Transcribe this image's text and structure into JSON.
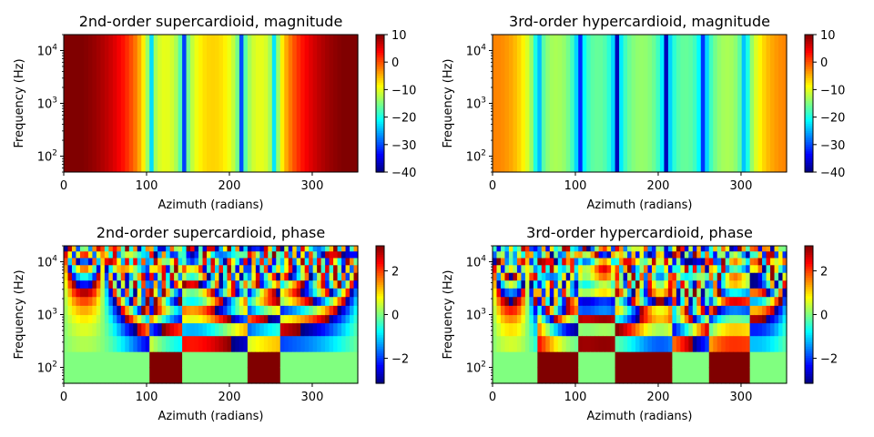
{
  "chart_data": [
    {
      "type": "heatmap",
      "title": "2nd-order supercardioid, magnitude",
      "xlabel": "Azimuth (radians)",
      "ylabel": "Frequency (Hz)",
      "xlim": [
        0,
        355
      ],
      "ylim": [
        50,
        20000
      ],
      "yscale": "log",
      "xticks": [
        0,
        100,
        200,
        300
      ],
      "yticks": [
        {
          "base": "10",
          "exp": "2",
          "value": 100
        },
        {
          "base": "10",
          "exp": "3",
          "value": 1000
        },
        {
          "base": "10",
          "exp": "4",
          "value": 10000
        }
      ],
      "colormap": "jet",
      "colorbar": {
        "min": -40,
        "max": 10,
        "ticks": [
          10,
          0,
          -10,
          -20,
          -30,
          -40
        ],
        "tick_labels": [
          "10",
          "0",
          "−10",
          "−20",
          "−30",
          "−40"
        ]
      },
      "pattern": "magnitude",
      "order": 2,
      "nulls_deg": [
        105,
        145,
        215,
        255
      ]
    },
    {
      "type": "heatmap",
      "title": "3rd-order hypercardioid, magnitude",
      "xlabel": "Azimuth (radians)",
      "ylabel": "Frequency (Hz)",
      "xlim": [
        0,
        355
      ],
      "ylim": [
        50,
        20000
      ],
      "yscale": "log",
      "xticks": [
        0,
        100,
        200,
        300
      ],
      "yticks": [
        {
          "base": "10",
          "exp": "2",
          "value": 100
        },
        {
          "base": "10",
          "exp": "3",
          "value": 1000
        },
        {
          "base": "10",
          "exp": "4",
          "value": 10000
        }
      ],
      "colormap": "jet",
      "colorbar": {
        "min": -40,
        "max": 10,
        "ticks": [
          10,
          0,
          -10,
          -20,
          -30,
          -40
        ],
        "tick_labels": [
          "10",
          "0",
          "−10",
          "−20",
          "−30",
          "−40"
        ]
      },
      "pattern": "magnitude",
      "order": 3,
      "nulls_deg": [
        55,
        105,
        150,
        210,
        255,
        305
      ]
    },
    {
      "type": "heatmap",
      "title": "2nd-order supercardioid, phase",
      "xlabel": "Azimuth (radians)",
      "ylabel": "Frequency (Hz)",
      "xlim": [
        0,
        355
      ],
      "ylim": [
        50,
        20000
      ],
      "yscale": "log",
      "xticks": [
        0,
        100,
        200,
        300
      ],
      "yticks": [
        {
          "base": "10",
          "exp": "2",
          "value": 100
        },
        {
          "base": "10",
          "exp": "3",
          "value": 1000
        },
        {
          "base": "10",
          "exp": "4",
          "value": 10000
        }
      ],
      "colormap": "jet",
      "colorbar": {
        "min": -3.14159,
        "max": 3.14159,
        "ticks": [
          2,
          0,
          -2
        ],
        "tick_labels": [
          "2",
          "0",
          "−2"
        ]
      },
      "pattern": "phase",
      "order": 2,
      "nulls_deg": [
        105,
        145,
        220,
        260
      ]
    },
    {
      "type": "heatmap",
      "title": "3rd-order hypercardioid, phase",
      "xlabel": "Azimuth (radians)",
      "ylabel": "Frequency (Hz)",
      "xlim": [
        0,
        355
      ],
      "ylim": [
        50,
        20000
      ],
      "yscale": "log",
      "xticks": [
        0,
        100,
        200,
        300
      ],
      "yticks": [
        {
          "base": "10",
          "exp": "2",
          "value": 100
        },
        {
          "base": "10",
          "exp": "3",
          "value": 1000
        },
        {
          "base": "10",
          "exp": "4",
          "value": 10000
        }
      ],
      "colormap": "jet",
      "colorbar": {
        "min": -3.14159,
        "max": 3.14159,
        "ticks": [
          2,
          0,
          -2
        ],
        "tick_labels": [
          "2",
          "0",
          "−2"
        ]
      },
      "pattern": "phase",
      "order": 3,
      "nulls_deg": [
        55,
        105,
        150,
        215,
        260,
        310
      ]
    }
  ]
}
